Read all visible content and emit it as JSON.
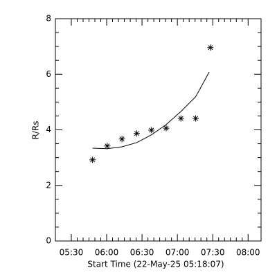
{
  "chart_data": {
    "type": "scatter",
    "x_label": "Start Time (22-May-25 05:18:07)",
    "y_label": "R/Rs",
    "xlim": [
      316.5,
      491
    ],
    "ylim": [
      0,
      8
    ],
    "xticks": [
      {
        "value": 330,
        "label": "05:30"
      },
      {
        "value": 360,
        "label": "06:00"
      },
      {
        "value": 390,
        "label": "06:30"
      },
      {
        "value": 420,
        "label": "07:00"
      },
      {
        "value": 450,
        "label": "07:30"
      },
      {
        "value": 480,
        "label": "08:00"
      }
    ],
    "yticks": [
      0,
      2,
      4,
      6,
      8
    ],
    "series": [
      {
        "style": "points",
        "color": "#000000",
        "x": [
          348,
          360.5,
          373,
          385.5,
          398,
          410.5,
          423,
          435.5,
          448
        ],
        "values": [
          2.92,
          3.42,
          3.67,
          3.87,
          3.99,
          4.06,
          4.41,
          4.41,
          6.96
        ]
      },
      {
        "style": "line",
        "color": "#000000",
        "x": [
          348,
          360.5,
          373,
          385.5,
          398,
          410.5,
          423,
          435.5,
          447
        ],
        "values": [
          3.34,
          3.32,
          3.39,
          3.54,
          3.82,
          4.19,
          4.66,
          5.19,
          6.08
        ]
      }
    ]
  }
}
